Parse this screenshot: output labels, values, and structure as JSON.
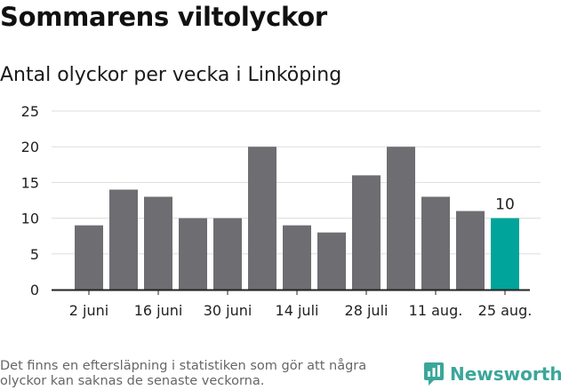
{
  "title": "Sommarens viltolyckor",
  "subtitle": "Antal olyckor per vecka i Linköping",
  "footnote": "Det finns en eftersläpning i statistiken som gör att några olyckor kan saknas de senaste veckorna.",
  "brand": {
    "name": "Newsworthy",
    "icon": "newsworthy-logo-icon",
    "color": "#3aa79a"
  },
  "chart_data": {
    "type": "bar",
    "x": [
      "2 juni",
      "9 juni",
      "16 juni",
      "23 juni",
      "30 juni",
      "7 juli",
      "14 juli",
      "21 juli",
      "28 juli",
      "4 aug.",
      "11 aug.",
      "18 aug.",
      "25 aug."
    ],
    "xticks": [
      "2 juni",
      "16 juni",
      "30 juni",
      "14 juli",
      "28 juli",
      "11 aug.",
      "25 aug."
    ],
    "values": [
      9,
      14,
      13,
      10,
      10,
      20,
      9,
      8,
      16,
      20,
      13,
      11,
      10
    ],
    "yticks": [
      0,
      5,
      10,
      15,
      20,
      25
    ],
    "ylim": [
      0,
      25
    ],
    "grid": true,
    "bar_color": "#6e6d72",
    "highlight_color": "#00a49a",
    "highlight_index": 12,
    "data_labels": [
      {
        "index": 12,
        "text": "10"
      }
    ]
  }
}
